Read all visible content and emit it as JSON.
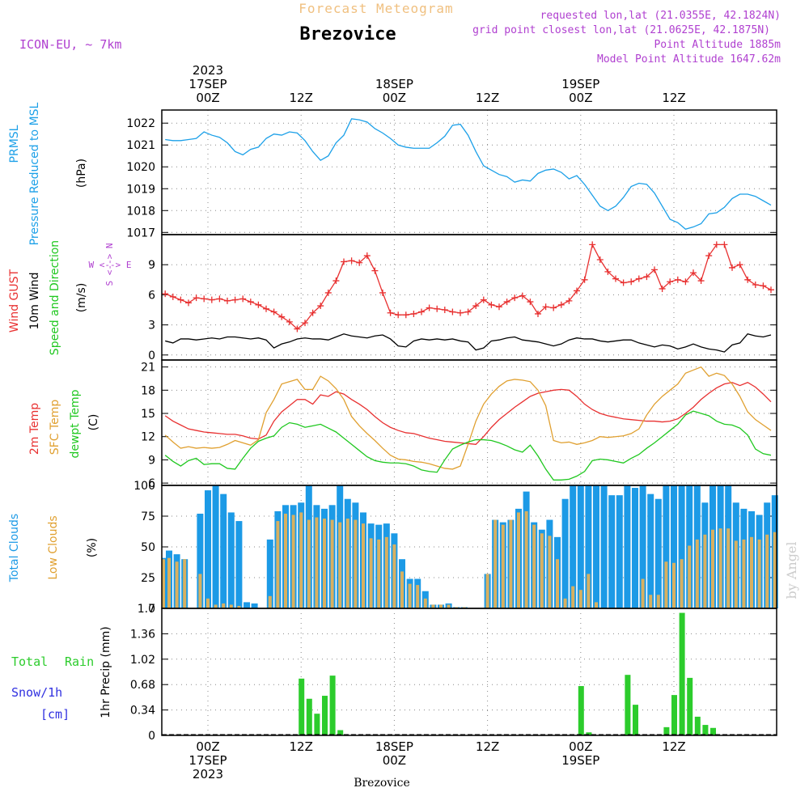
{
  "header": {
    "title": "Forecast Meteogram",
    "location": "Brezovice",
    "model": "ICON-EU, ~ 7km",
    "requested": "requested lon,lat (21.0355E, 42.1824N)",
    "gridpoint": "grid point closest lon,lat (21.0625E, 42.1875N)",
    "altitude": "Point Altitude 1885m",
    "model_altitude": "Model Point Altitude 1647.62m",
    "footer": "Brezovice",
    "watermark": "by Angel"
  },
  "time_axis": {
    "top_year": "2023",
    "top_labels": [
      {
        "hour": 0,
        "lines": [
          "17SEP",
          "00Z"
        ]
      },
      {
        "hour": 12,
        "lines": [
          "12Z"
        ]
      },
      {
        "hour": 24,
        "lines": [
          "18SEP",
          "00Z"
        ]
      },
      {
        "hour": 36,
        "lines": [
          "12Z"
        ]
      },
      {
        "hour": 48,
        "lines": [
          "19SEP",
          "00Z"
        ]
      },
      {
        "hour": 60,
        "lines": [
          "12Z"
        ]
      }
    ],
    "bottom_labels": [
      {
        "hour": 0,
        "lines": [
          "00Z",
          "17SEP",
          "2023"
        ]
      },
      {
        "hour": 12,
        "lines": [
          "12Z"
        ]
      },
      {
        "hour": 24,
        "lines": [
          "18SEP",
          "00Z"
        ]
      },
      {
        "hour": 36,
        "lines": [
          "12Z"
        ]
      },
      {
        "hour": 48,
        "lines": [
          "00Z",
          "19SEP"
        ]
      },
      {
        "hour": 60,
        "lines": [
          "12Z"
        ]
      }
    ]
  },
  "panel_labels": {
    "pressure": [
      "PRMSL",
      "Pressure Reduced to MSL",
      "(hPa)"
    ],
    "wind": [
      "Wind GUST",
      "10m Wind",
      "Speed and Direction",
      "(m/s)"
    ],
    "compass": [
      "W <--> E",
      "S <--> N"
    ],
    "temp": [
      "2m Temp",
      "SFC Temp",
      "dewpt Temp",
      "(C)"
    ],
    "clouds": [
      "Total Clouds",
      "Low Clouds",
      "(%)"
    ],
    "precip": [
      "Total",
      "Rain",
      "Snow/1h",
      "[cm]",
      "1hr Precip (mm)"
    ]
  },
  "colors": {
    "pressure": "#1ca0e8",
    "gust": "#e83030",
    "wind": "#000000",
    "t2m": "#e83030",
    "tsfc": "#e0a030",
    "dewpt": "#20c820",
    "total_clouds": "#1c9ae6",
    "low_clouds": "#d8b060",
    "rain": "#2ccc2c",
    "snow": "#3030e0",
    "title": "#f0c080",
    "meta": "#b040d0"
  },
  "chart_data": [
    {
      "type": "line",
      "title": "PRMSL Pressure Reduced to MSL",
      "ylabel": "(hPa)",
      "ylim": [
        1016.9,
        1022.6
      ],
      "yticks": [
        1017,
        1018,
        1019,
        1020,
        1021,
        1022
      ],
      "x_start_hour": -5.5,
      "x_step_hours": 1,
      "series": [
        {
          "name": "PRMSL",
          "values": [
            1021.25,
            1021.2,
            1021.2,
            1021.25,
            1021.3,
            1021.6,
            1021.45,
            1021.35,
            1021.1,
            1020.7,
            1020.55,
            1020.8,
            1020.9,
            1021.3,
            1021.5,
            1021.45,
            1021.6,
            1021.55,
            1021.2,
            1020.7,
            1020.3,
            1020.5,
            1021.1,
            1021.45,
            1022.2,
            1022.15,
            1022.05,
            1021.75,
            1021.55,
            1021.3,
            1021.0,
            1020.9,
            1020.85,
            1020.85,
            1020.85,
            1021.1,
            1021.4,
            1021.9,
            1021.95,
            1021.45,
            1020.7,
            1020.05,
            1019.85,
            1019.65,
            1019.55,
            1019.3,
            1019.4,
            1019.35,
            1019.7,
            1019.85,
            1019.9,
            1019.75,
            1019.45,
            1019.6,
            1019.2,
            1018.7,
            1018.2,
            1018.0,
            1018.2,
            1018.6,
            1019.1,
            1019.25,
            1019.2,
            1018.8,
            1018.2,
            1017.6,
            1017.45,
            1017.15,
            1017.25,
            1017.4,
            1017.85,
            1017.9,
            1018.15,
            1018.55,
            1018.75,
            1018.75,
            1018.65,
            1018.45,
            1018.25
          ]
        }
      ]
    },
    {
      "type": "line",
      "title": "Wind GUST / 10m Wind Speed and Direction",
      "ylabel": "(m/s)",
      "ylim": [
        -0.5,
        12.0
      ],
      "yticks": [
        0,
        3,
        6,
        9
      ],
      "x_start_hour": -5.5,
      "x_step_hours": 1,
      "series": [
        {
          "name": "Wind GUST",
          "values": [
            6.1,
            5.8,
            5.5,
            5.2,
            5.7,
            5.6,
            5.5,
            5.6,
            5.4,
            5.5,
            5.6,
            5.3,
            5.0,
            4.6,
            4.3,
            3.8,
            3.3,
            2.6,
            3.2,
            4.2,
            4.9,
            6.2,
            7.4,
            9.3,
            9.4,
            9.2,
            9.9,
            8.4,
            6.2,
            4.2,
            4.0,
            4.0,
            4.1,
            4.3,
            4.7,
            4.6,
            4.5,
            4.3,
            4.2,
            4.3,
            4.9,
            5.5,
            5.0,
            4.8,
            5.3,
            5.7,
            5.9,
            5.3,
            4.1,
            4.8,
            4.7,
            5.0,
            5.4,
            6.4,
            7.5,
            11.0,
            9.5,
            8.3,
            7.6,
            7.2,
            7.3,
            7.6,
            7.8,
            8.5,
            6.6,
            7.3,
            7.5,
            7.3,
            8.2,
            7.4,
            9.9,
            11.0,
            11.0,
            8.7,
            9.0,
            7.5,
            7.0,
            6.9,
            6.5,
            6.8,
            6.7
          ]
        },
        {
          "name": "10m Wind",
          "values": [
            1.4,
            1.2,
            1.6,
            1.6,
            1.5,
            1.6,
            1.7,
            1.6,
            1.8,
            1.8,
            1.7,
            1.6,
            1.7,
            1.5,
            0.7,
            1.1,
            1.3,
            1.6,
            1.7,
            1.6,
            1.6,
            1.5,
            1.8,
            2.1,
            1.9,
            1.8,
            1.7,
            1.9,
            2.0,
            1.6,
            0.9,
            0.8,
            1.4,
            1.6,
            1.5,
            1.6,
            1.5,
            1.6,
            1.4,
            1.3,
            0.5,
            0.7,
            1.4,
            1.5,
            1.7,
            1.8,
            1.5,
            1.4,
            1.3,
            1.1,
            0.9,
            1.1,
            1.5,
            1.7,
            1.6,
            1.6,
            1.4,
            1.3,
            1.4,
            1.5,
            1.5,
            1.2,
            1.0,
            0.8,
            1.0,
            0.9,
            0.6,
            0.8,
            1.1,
            0.8,
            0.6,
            0.5,
            0.3,
            1.0,
            1.2,
            2.1,
            1.9,
            1.8,
            2.0,
            2.1,
            2.1
          ]
        }
      ]
    },
    {
      "type": "line",
      "title": "2m Temp / SFC Temp / dewpt Temp",
      "ylabel": "(C)",
      "ylim": [
        5.7,
        21.9
      ],
      "yticks": [
        6,
        9,
        12,
        15,
        18,
        21
      ],
      "x_start_hour": -5.5,
      "x_step_hours": 1,
      "series": [
        {
          "name": "2m Temp",
          "values": [
            14.7,
            14.0,
            13.5,
            13.0,
            12.8,
            12.6,
            12.5,
            12.4,
            12.3,
            12.3,
            12.1,
            11.8,
            11.7,
            12.2,
            14.0,
            15.2,
            16.0,
            16.8,
            16.8,
            16.2,
            17.4,
            17.2,
            17.8,
            17.5,
            16.8,
            16.2,
            15.5,
            14.6,
            13.8,
            13.2,
            12.8,
            12.5,
            12.4,
            12.1,
            11.8,
            11.6,
            11.4,
            11.3,
            11.2,
            11.1,
            11.0,
            12.0,
            13.2,
            14.2,
            15.0,
            15.8,
            16.5,
            17.2,
            17.6,
            17.8,
            18.0,
            18.1,
            18.0,
            17.2,
            16.2,
            15.5,
            15.0,
            14.7,
            14.5,
            14.3,
            14.2,
            14.1,
            14.0,
            14.0,
            13.9,
            14.0,
            14.3,
            15.0,
            15.8,
            16.8,
            17.6,
            18.3,
            18.8,
            19.0,
            18.6,
            19.0,
            18.4,
            17.5,
            16.5,
            15.5,
            15.2,
            14.8,
            14.6,
            14.4,
            14.3
          ]
        },
        {
          "name": "SFC Temp",
          "values": [
            12.2,
            11.3,
            10.5,
            10.7,
            10.5,
            10.6,
            10.5,
            10.6,
            11.0,
            11.5,
            11.2,
            10.9,
            11.6,
            15.1,
            16.8,
            18.8,
            19.1,
            19.4,
            18.1,
            18.1,
            19.8,
            19.2,
            18.2,
            16.8,
            14.6,
            13.4,
            12.4,
            11.5,
            10.5,
            9.6,
            9.1,
            9.0,
            8.8,
            8.7,
            8.5,
            8.2,
            7.9,
            7.8,
            8.2,
            11.0,
            14.0,
            16.2,
            17.5,
            18.5,
            19.2,
            19.4,
            19.3,
            19.1,
            18.0,
            16.0,
            11.5,
            11.2,
            11.3,
            11.0,
            11.2,
            11.5,
            12.0,
            11.9,
            12.0,
            12.1,
            12.4,
            13.0,
            14.8,
            16.2,
            17.2,
            18.0,
            18.8,
            20.2,
            20.6,
            21.0,
            19.8,
            20.2,
            19.9,
            18.8,
            17.2,
            15.2,
            14.2,
            13.5,
            12.8,
            12.6,
            12.4,
            12.1
          ]
        },
        {
          "name": "dewpt Temp",
          "values": [
            9.6,
            8.8,
            8.2,
            8.9,
            9.2,
            8.4,
            8.5,
            8.5,
            7.9,
            7.8,
            9.2,
            10.5,
            11.4,
            11.8,
            12.1,
            13.2,
            13.8,
            13.6,
            13.2,
            13.4,
            13.6,
            13.1,
            12.6,
            11.8,
            11.0,
            10.2,
            9.4,
            8.9,
            8.7,
            8.6,
            8.6,
            8.5,
            8.2,
            7.7,
            7.5,
            7.4,
            9.0,
            10.4,
            10.9,
            11.3,
            11.6,
            11.6,
            11.5,
            11.2,
            10.8,
            10.3,
            10.0,
            10.9,
            9.5,
            7.8,
            6.4,
            6.4,
            6.5,
            6.9,
            7.5,
            8.9,
            9.1,
            9.0,
            8.8,
            8.6,
            9.2,
            9.7,
            10.5,
            11.2,
            12.0,
            12.8,
            13.6,
            14.8,
            15.3,
            15.0,
            14.7,
            14.0,
            13.6,
            13.5,
            13.1,
            12.2,
            10.4,
            9.8,
            9.6,
            9.5,
            9.3,
            9.1,
            9.0
          ]
        }
      ]
    },
    {
      "type": "bar",
      "title": "Total Clouds / Low Clouds",
      "ylabel": "(%)",
      "ylim": [
        0,
        100
      ],
      "yticks": [
        0,
        25,
        50,
        75,
        100
      ],
      "x_start_hour": -6,
      "x_step_hours": 1,
      "series": [
        {
          "name": "Total Clouds",
          "values": [
            41,
            47,
            44,
            40,
            0,
            77,
            96,
            100,
            93,
            78,
            71,
            5,
            4,
            0,
            56,
            79,
            84,
            84,
            86,
            100,
            84,
            81,
            84,
            100,
            89,
            86,
            78,
            69,
            68,
            69,
            61,
            40,
            24,
            24,
            14,
            3,
            3,
            4,
            1,
            1,
            0,
            0,
            28,
            72,
            70,
            72,
            81,
            95,
            70,
            64,
            72,
            58,
            89,
            100,
            100,
            100,
            100,
            100,
            92,
            92,
            100,
            98,
            100,
            93,
            89,
            100,
            100,
            100,
            100,
            100,
            86,
            100,
            100,
            100,
            86,
            81,
            79,
            76,
            86,
            92,
            64,
            91,
            84,
            72
          ]
        },
        {
          "name": "Low Clouds",
          "values": [
            40,
            41,
            38,
            40,
            0,
            28,
            8,
            3,
            4,
            3,
            2,
            0,
            0,
            0,
            10,
            71,
            77,
            76,
            78,
            72,
            74,
            73,
            72,
            70,
            73,
            72,
            69,
            57,
            56,
            58,
            52,
            30,
            20,
            19,
            8,
            3,
            3,
            3,
            1,
            1,
            0,
            0,
            28,
            72,
            68,
            72,
            78,
            79,
            68,
            61,
            59,
            40,
            8,
            18,
            15,
            28,
            5,
            0,
            0,
            0,
            0,
            0,
            24,
            11,
            11,
            38,
            37,
            40,
            51,
            56,
            60,
            64,
            65,
            65,
            55,
            56,
            58,
            56,
            60,
            62,
            53,
            41,
            44,
            37
          ]
        }
      ]
    },
    {
      "type": "bar",
      "title": "1hr Precip (mm)",
      "ylabel": "1hr Precip (mm)",
      "ylim": [
        0,
        1.7
      ],
      "yticks": [
        0,
        0.34,
        0.68,
        1.02,
        1.36,
        1.7
      ],
      "x_start_hour": -6,
      "x_step_hours": 1,
      "series": [
        {
          "name": "Total Rain",
          "values": [
            0,
            0,
            0,
            0,
            0,
            0,
            0,
            0,
            0,
            0,
            0,
            0,
            0,
            0,
            0,
            0,
            0,
            0,
            0.76,
            0.49,
            0.29,
            0.53,
            0.8,
            0.07,
            0,
            0,
            0,
            0,
            0,
            0,
            0,
            0,
            0,
            0,
            0,
            0,
            0,
            0,
            0,
            0,
            0,
            0,
            0,
            0,
            0,
            0,
            0,
            0,
            0,
            0,
            0,
            0,
            0,
            0,
            0.66,
            0.04,
            0,
            0,
            0,
            0,
            0.81,
            0.41,
            0,
            0,
            0,
            0.11,
            0.54,
            1.64,
            0.77,
            0.25,
            0.14,
            0.1,
            0,
            0,
            0,
            0,
            0,
            0,
            0,
            0,
            0,
            0,
            0
          ]
        },
        {
          "name": "Snow/1h",
          "values": [
            0,
            0,
            0,
            0,
            0,
            0,
            0,
            0,
            0,
            0,
            0,
            0,
            0,
            0,
            0,
            0,
            0,
            0,
            0,
            0,
            0,
            0,
            0,
            0,
            0,
            0,
            0,
            0,
            0,
            0,
            0,
            0,
            0,
            0,
            0,
            0,
            0,
            0,
            0,
            0,
            0,
            0,
            0,
            0,
            0,
            0,
            0,
            0,
            0,
            0,
            0,
            0,
            0,
            0,
            0,
            0,
            0,
            0,
            0,
            0,
            0,
            0,
            0,
            0,
            0,
            0,
            0,
            0,
            0,
            0,
            0,
            0,
            0,
            0,
            0,
            0,
            0,
            0,
            0,
            0,
            0,
            0,
            0
          ]
        }
      ]
    }
  ]
}
